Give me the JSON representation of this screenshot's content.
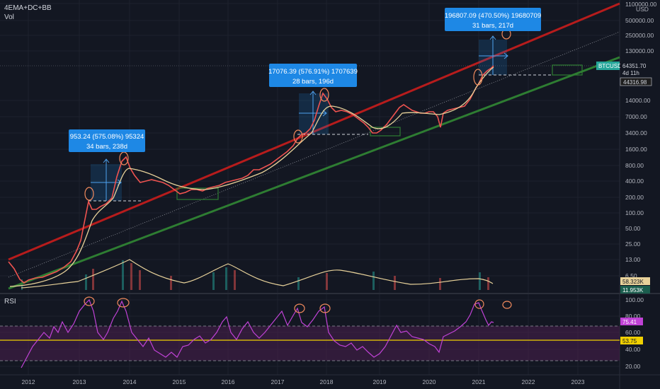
{
  "legend": {
    "main_title": "4EMA+DC+BB",
    "volume_label": "Vol",
    "rsi_label": "RSI"
  },
  "price_axis": {
    "unit": "USD",
    "ticks": [
      "1100000.00",
      "500000.00",
      "250000.00",
      "130000.00",
      "14000.00",
      "7000.00",
      "3400.00",
      "1600.00",
      "800.00",
      "400.00",
      "200.00",
      "100.00",
      "50.00",
      "25.00",
      "13.00",
      "6.50"
    ],
    "symbol_tag": "BTCUSD",
    "last_price": "64351.70",
    "countdown": "4d 11h",
    "level_price": "44316.98",
    "vol_ma": "58.323K",
    "vol_value": "11.953K"
  },
  "rsi_axis": {
    "ticks": [
      "100.00",
      "80.00",
      "60.00",
      "40.00",
      "20.00"
    ],
    "value": "75.41",
    "ma": "53.75"
  },
  "time_axis": {
    "ticks": [
      "2012",
      "2013",
      "2014",
      "2015",
      "2016",
      "2017",
      "2018",
      "2019",
      "2020",
      "2021",
      "2022",
      "2023"
    ]
  },
  "annotations": [
    {
      "line1": "953.24 (575.08%) 95324",
      "line2": "34 bars, 238d"
    },
    {
      "line1": "17076.39 (576.91%) 1707639",
      "line2": "28 bars, 196d"
    },
    {
      "line1": "196807.09 (470.50%) 19680709",
      "line2": "31 bars, 217d"
    }
  ],
  "colors": {
    "background": "#131722",
    "up_candle": "#26a69a",
    "down_candle": "#ef5350",
    "upper_channel": "#b71c1c",
    "lower_channel": "#2e7d32",
    "ema": "#e8d29a",
    "rsi": "#c042d6",
    "rsi_band": "#4a1f4f",
    "annotation_box": "#1e88e5",
    "highlight_circle": "#f08a5d"
  }
}
